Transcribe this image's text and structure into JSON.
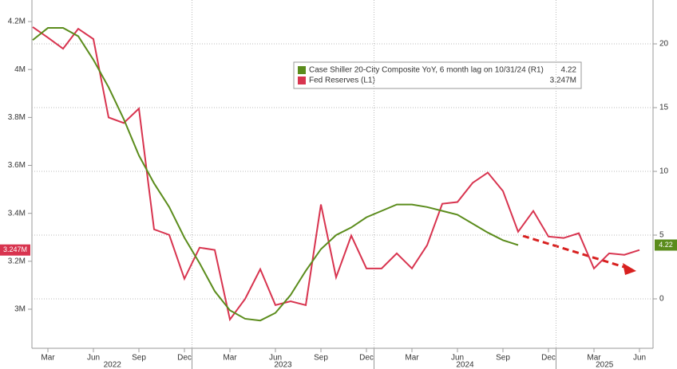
{
  "chart_data": {
    "type": "line",
    "categories": [
      null,
      "Mar",
      null,
      null,
      "Jun",
      null,
      null,
      "Sep",
      null,
      null,
      "Dec",
      null,
      null,
      "Mar",
      null,
      null,
      "Jun",
      null,
      null,
      "Sep",
      null,
      null,
      "Dec",
      null,
      null,
      "Mar",
      null,
      null,
      "Jun",
      null,
      null,
      "Sep",
      null,
      null,
      "Dec",
      null,
      null,
      "Mar",
      null,
      null,
      "Jun"
    ],
    "year_labels": [
      "2022",
      "2023",
      "2024",
      "2025"
    ],
    "series": [
      {
        "name": "Case Shiller 20-City Composite YoY, 6 month lag on 10/31/24 (R1)",
        "color": "#5b8c1c",
        "axis": "y2",
        "last_value_label": "4.22",
        "values": [
          20.3,
          21.25,
          21.25,
          20.6,
          18.75,
          16.6,
          14.1,
          11.25,
          9.06,
          7.2,
          4.8,
          2.8,
          0.6,
          -0.9,
          -1.56,
          -1.7,
          -1.1,
          0.3,
          2.2,
          3.9,
          5.0,
          5.6,
          6.4,
          6.9,
          7.4,
          7.4,
          7.2,
          6.9,
          6.6,
          5.9,
          5.2,
          4.6,
          4.22,
          null,
          null,
          null,
          null,
          null,
          null,
          null,
          null
        ]
      },
      {
        "name": "Fed Reserves (L1)",
        "color": "#d8344f",
        "last_value_label": "3.247M",
        "values": [
          4.177,
          4.133,
          4.087,
          4.17,
          4.127,
          3.8,
          3.777,
          3.837,
          3.333,
          3.31,
          3.127,
          3.257,
          3.247,
          2.957,
          3.043,
          3.167,
          3.017,
          3.033,
          3.017,
          3.437,
          3.133,
          3.307,
          3.17,
          3.17,
          3.233,
          3.17,
          3.267,
          3.44,
          3.447,
          3.527,
          3.57,
          3.493,
          3.323,
          3.41,
          3.303,
          3.297,
          3.317,
          3.17,
          3.233,
          3.227,
          3.247
        ]
      }
    ],
    "ylim": [
      2.837,
      4.29
    ],
    "yticks": [
      {
        "value": 3,
        "label": "3M"
      },
      {
        "value": 3.2,
        "label": "3.2M"
      },
      {
        "value": 3.4,
        "label": "3.4M"
      },
      {
        "value": 3.6,
        "label": "3.6M"
      },
      {
        "value": 3.8,
        "label": "3.8M"
      },
      {
        "value": 4,
        "label": "4M"
      },
      {
        "value": 4.2,
        "label": "4.2M"
      }
    ],
    "y2lim": [
      -3.875,
      23.44
    ],
    "y2ticks": [
      0,
      5,
      10,
      15,
      20
    ],
    "grid": true
  }
}
